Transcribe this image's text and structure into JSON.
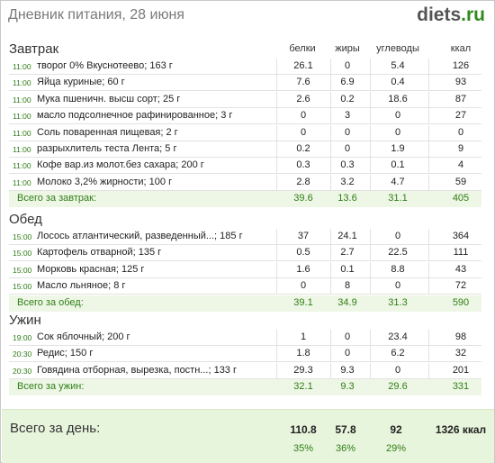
{
  "header": {
    "title": "Дневник питания, 28 июня",
    "logo_main": "diets",
    "logo_dot": ".",
    "logo_tld": "ru"
  },
  "columns": {
    "protein": "белки",
    "fat": "жиры",
    "carbs": "углеводы",
    "kcal": "ккал"
  },
  "meals": [
    {
      "title": "Завтрак",
      "items": [
        {
          "time": "11:00",
          "food": "творог 0% Вкуснотеево; 163 г",
          "protein": "26.1",
          "fat": "0",
          "carbs": "5.4",
          "kcal": "126"
        },
        {
          "time": "11:00",
          "food": "Яйца куриные; 60 г",
          "protein": "7.6",
          "fat": "6.9",
          "carbs": "0.4",
          "kcal": "93"
        },
        {
          "time": "11:00",
          "food": "Мука пшеничн. высш сорт; 25 г",
          "protein": "2.6",
          "fat": "0.2",
          "carbs": "18.6",
          "kcal": "87"
        },
        {
          "time": "11:00",
          "food": "масло подсолнечное рафинированное; 3 г",
          "protein": "0",
          "fat": "3",
          "carbs": "0",
          "kcal": "27"
        },
        {
          "time": "11:00",
          "food": "Соль поваренная пищевая; 2 г",
          "protein": "0",
          "fat": "0",
          "carbs": "0",
          "kcal": "0"
        },
        {
          "time": "11:00",
          "food": "разрыхлитель теста Лента; 5 г",
          "protein": "0.2",
          "fat": "0",
          "carbs": "1.9",
          "kcal": "9"
        },
        {
          "time": "11:00",
          "food": "Кофе вар.из молот.без сахара; 200 г",
          "protein": "0.3",
          "fat": "0.3",
          "carbs": "0.1",
          "kcal": "4"
        },
        {
          "time": "11:00",
          "food": "Молоко 3,2% жирности; 100 г",
          "protein": "2.8",
          "fat": "3.2",
          "carbs": "4.7",
          "kcal": "59"
        }
      ],
      "total": {
        "label": "Всего за завтрак:",
        "protein": "39.6",
        "fat": "13.6",
        "carbs": "31.1",
        "kcal": "405"
      }
    },
    {
      "title": "Обед",
      "items": [
        {
          "time": "15:00",
          "food": "Лосось атлантический, разведенный...; 185 г",
          "protein": "37",
          "fat": "24.1",
          "carbs": "0",
          "kcal": "364"
        },
        {
          "time": "15:00",
          "food": "Картофель отварной; 135 г",
          "protein": "0.5",
          "fat": "2.7",
          "carbs": "22.5",
          "kcal": "111"
        },
        {
          "time": "15:00",
          "food": "Морковь красная; 125 г",
          "protein": "1.6",
          "fat": "0.1",
          "carbs": "8.8",
          "kcal": "43"
        },
        {
          "time": "15:00",
          "food": "Масло льняное; 8 г",
          "protein": "0",
          "fat": "8",
          "carbs": "0",
          "kcal": "72"
        }
      ],
      "total": {
        "label": "Всего за обед:",
        "protein": "39.1",
        "fat": "34.9",
        "carbs": "31.3",
        "kcal": "590"
      }
    },
    {
      "title": "Ужин",
      "items": [
        {
          "time": "19:00",
          "food": "Сок яблочный; 200 г",
          "protein": "1",
          "fat": "0",
          "carbs": "23.4",
          "kcal": "98"
        },
        {
          "time": "20:30",
          "food": "Редис; 150 г",
          "protein": "1.8",
          "fat": "0",
          "carbs": "6.2",
          "kcal": "32"
        },
        {
          "time": "20:30",
          "food": "Говядина отборная, вырезка, постн...; 133 г",
          "protein": "29.3",
          "fat": "9.3",
          "carbs": "0",
          "kcal": "201"
        }
      ],
      "total": {
        "label": "Всего за ужин:",
        "protein": "32.1",
        "fat": "9.3",
        "carbs": "29.6",
        "kcal": "331"
      }
    }
  ],
  "day_total": {
    "label": "Всего за день:",
    "protein": "110.8",
    "fat": "57.8",
    "carbs": "92",
    "kcal": "1326 ккал",
    "protein_pct": "35%",
    "fat_pct": "36%",
    "carbs_pct": "29%"
  },
  "colors": {
    "accent_green": "#2f7d16",
    "total_row_bg": "#eef7e6",
    "day_box_bg": "#e8f5dd"
  }
}
